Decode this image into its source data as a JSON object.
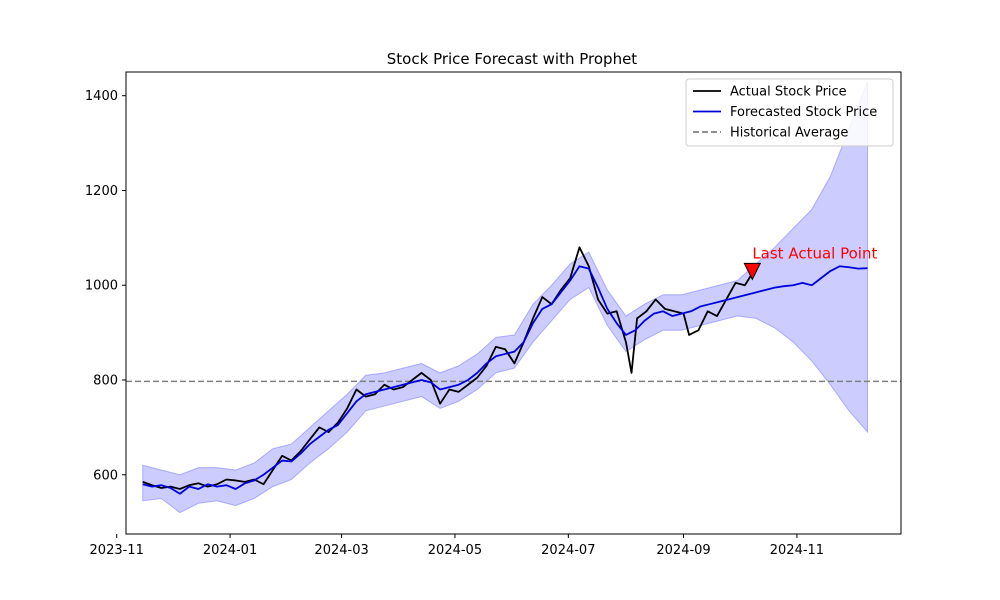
{
  "chart_data": {
    "type": "line",
    "title": "Stock Price Forecast with Prophet",
    "xlabel": "",
    "ylabel": "",
    "xlim": [
      "2023-11-06",
      "2024-12-27"
    ],
    "ylim": [
      475,
      1450
    ],
    "x_ticks": [
      "2023-11",
      "2024-01",
      "2024-03",
      "2024-05",
      "2024-07",
      "2024-09",
      "2024-11"
    ],
    "y_ticks": [
      600,
      800,
      1000,
      1200,
      1400
    ],
    "grid": false,
    "legend_position": "top-right",
    "series": [
      {
        "name": "Actual Stock Price",
        "color": "#000000",
        "style": "solid",
        "points": [
          [
            "2023-11-15",
            585
          ],
          [
            "2023-11-20",
            578
          ],
          [
            "2023-11-25",
            572
          ],
          [
            "2023-11-30",
            575
          ],
          [
            "2023-12-05",
            570
          ],
          [
            "2023-12-10",
            578
          ],
          [
            "2023-12-15",
            582
          ],
          [
            "2023-12-20",
            575
          ],
          [
            "2023-12-25",
            580
          ],
          [
            "2023-12-30",
            590
          ],
          [
            "2024-01-04",
            588
          ],
          [
            "2024-01-09",
            585
          ],
          [
            "2024-01-14",
            590
          ],
          [
            "2024-01-19",
            580
          ],
          [
            "2024-01-24",
            610
          ],
          [
            "2024-01-29",
            640
          ],
          [
            "2024-02-03",
            630
          ],
          [
            "2024-02-08",
            650
          ],
          [
            "2024-02-13",
            675
          ],
          [
            "2024-02-18",
            700
          ],
          [
            "2024-02-23",
            690
          ],
          [
            "2024-02-28",
            710
          ],
          [
            "2024-03-04",
            740
          ],
          [
            "2024-03-09",
            780
          ],
          [
            "2024-03-14",
            765
          ],
          [
            "2024-03-19",
            770
          ],
          [
            "2024-03-24",
            790
          ],
          [
            "2024-03-29",
            780
          ],
          [
            "2024-04-03",
            785
          ],
          [
            "2024-04-08",
            800
          ],
          [
            "2024-04-13",
            815
          ],
          [
            "2024-04-18",
            800
          ],
          [
            "2024-04-23",
            750
          ],
          [
            "2024-04-28",
            780
          ],
          [
            "2024-05-03",
            775
          ],
          [
            "2024-05-08",
            790
          ],
          [
            "2024-05-13",
            805
          ],
          [
            "2024-05-18",
            830
          ],
          [
            "2024-05-23",
            870
          ],
          [
            "2024-05-28",
            865
          ],
          [
            "2024-06-02",
            835
          ],
          [
            "2024-06-07",
            880
          ],
          [
            "2024-06-12",
            930
          ],
          [
            "2024-06-17",
            975
          ],
          [
            "2024-06-22",
            960
          ],
          [
            "2024-06-27",
            990
          ],
          [
            "2024-07-02",
            1015
          ],
          [
            "2024-07-07",
            1080
          ],
          [
            "2024-07-12",
            1040
          ],
          [
            "2024-07-17",
            970
          ],
          [
            "2024-07-22",
            940
          ],
          [
            "2024-07-27",
            945
          ],
          [
            "2024-08-01",
            880
          ],
          [
            "2024-08-04",
            815
          ],
          [
            "2024-08-07",
            930
          ],
          [
            "2024-08-12",
            945
          ],
          [
            "2024-08-17",
            970
          ],
          [
            "2024-08-22",
            950
          ],
          [
            "2024-08-27",
            945
          ],
          [
            "2024-09-01",
            940
          ],
          [
            "2024-09-04",
            895
          ],
          [
            "2024-09-09",
            905
          ],
          [
            "2024-09-14",
            945
          ],
          [
            "2024-09-19",
            935
          ],
          [
            "2024-09-24",
            970
          ],
          [
            "2024-09-29",
            1005
          ],
          [
            "2024-10-04",
            1000
          ],
          [
            "2024-10-08",
            1025
          ]
        ]
      },
      {
        "name": "Forecasted Stock Price",
        "color": "#0000dd",
        "style": "solid",
        "points": [
          [
            "2023-11-15",
            580
          ],
          [
            "2023-11-20",
            575
          ],
          [
            "2023-11-25",
            578
          ],
          [
            "2023-11-30",
            572
          ],
          [
            "2023-12-05",
            560
          ],
          [
            "2023-12-10",
            575
          ],
          [
            "2023-12-15",
            570
          ],
          [
            "2023-12-20",
            580
          ],
          [
            "2023-12-25",
            575
          ],
          [
            "2023-12-30",
            578
          ],
          [
            "2024-01-04",
            570
          ],
          [
            "2024-01-09",
            582
          ],
          [
            "2024-01-14",
            588
          ],
          [
            "2024-01-19",
            600
          ],
          [
            "2024-01-24",
            615
          ],
          [
            "2024-01-29",
            630
          ],
          [
            "2024-02-03",
            628
          ],
          [
            "2024-02-08",
            645
          ],
          [
            "2024-02-13",
            665
          ],
          [
            "2024-02-18",
            680
          ],
          [
            "2024-02-23",
            695
          ],
          [
            "2024-02-28",
            705
          ],
          [
            "2024-03-04",
            730
          ],
          [
            "2024-03-09",
            755
          ],
          [
            "2024-03-14",
            770
          ],
          [
            "2024-03-19",
            775
          ],
          [
            "2024-03-24",
            780
          ],
          [
            "2024-03-29",
            785
          ],
          [
            "2024-04-03",
            790
          ],
          [
            "2024-04-08",
            795
          ],
          [
            "2024-04-13",
            800
          ],
          [
            "2024-04-18",
            795
          ],
          [
            "2024-04-23",
            780
          ],
          [
            "2024-04-28",
            785
          ],
          [
            "2024-05-03",
            790
          ],
          [
            "2024-05-08",
            800
          ],
          [
            "2024-05-13",
            815
          ],
          [
            "2024-05-18",
            835
          ],
          [
            "2024-05-23",
            850
          ],
          [
            "2024-05-28",
            855
          ],
          [
            "2024-06-02",
            860
          ],
          [
            "2024-06-07",
            880
          ],
          [
            "2024-06-12",
            920
          ],
          [
            "2024-06-17",
            950
          ],
          [
            "2024-06-22",
            960
          ],
          [
            "2024-06-27",
            985
          ],
          [
            "2024-07-02",
            1010
          ],
          [
            "2024-07-07",
            1040
          ],
          [
            "2024-07-12",
            1035
          ],
          [
            "2024-07-17",
            995
          ],
          [
            "2024-07-22",
            950
          ],
          [
            "2024-07-27",
            920
          ],
          [
            "2024-08-01",
            895
          ],
          [
            "2024-08-06",
            905
          ],
          [
            "2024-08-11",
            925
          ],
          [
            "2024-08-16",
            940
          ],
          [
            "2024-08-21",
            945
          ],
          [
            "2024-08-26",
            935
          ],
          [
            "2024-08-31",
            940
          ],
          [
            "2024-09-05",
            945
          ],
          [
            "2024-09-10",
            955
          ],
          [
            "2024-09-15",
            960
          ],
          [
            "2024-09-20",
            965
          ],
          [
            "2024-09-25",
            970
          ],
          [
            "2024-09-30",
            975
          ],
          [
            "2024-10-05",
            980
          ],
          [
            "2024-10-10",
            985
          ],
          [
            "2024-10-15",
            990
          ],
          [
            "2024-10-20",
            995
          ],
          [
            "2024-10-25",
            998
          ],
          [
            "2024-10-30",
            1000
          ],
          [
            "2024-11-04",
            1005
          ],
          [
            "2024-11-09",
            1000
          ],
          [
            "2024-11-14",
            1015
          ],
          [
            "2024-11-19",
            1030
          ],
          [
            "2024-11-24",
            1040
          ],
          [
            "2024-11-29",
            1038
          ],
          [
            "2024-12-04",
            1035
          ],
          [
            "2024-12-09",
            1036
          ]
        ]
      },
      {
        "name": "Historical Average",
        "color": "#808080",
        "style": "dashed",
        "value": 797
      }
    ],
    "confidence_band": {
      "color": "#0000ff",
      "opacity": 0.2,
      "points": [
        [
          "2023-11-15",
          545,
          620
        ],
        [
          "2023-11-25",
          550,
          610
        ],
        [
          "2023-12-05",
          520,
          600
        ],
        [
          "2023-12-15",
          540,
          615
        ],
        [
          "2023-12-25",
          545,
          615
        ],
        [
          "2024-01-04",
          535,
          610
        ],
        [
          "2024-01-14",
          550,
          625
        ],
        [
          "2024-01-24",
          575,
          655
        ],
        [
          "2024-02-03",
          590,
          665
        ],
        [
          "2024-02-13",
          625,
          700
        ],
        [
          "2024-02-23",
          655,
          735
        ],
        [
          "2024-03-04",
          690,
          770
        ],
        [
          "2024-03-14",
          735,
          810
        ],
        [
          "2024-03-24",
          745,
          815
        ],
        [
          "2024-04-03",
          755,
          825
        ],
        [
          "2024-04-13",
          765,
          835
        ],
        [
          "2024-04-23",
          740,
          815
        ],
        [
          "2024-05-03",
          755,
          830
        ],
        [
          "2024-05-13",
          780,
          855
        ],
        [
          "2024-05-23",
          815,
          890
        ],
        [
          "2024-06-02",
          825,
          895
        ],
        [
          "2024-06-12",
          880,
          960
        ],
        [
          "2024-06-22",
          925,
          1000
        ],
        [
          "2024-07-02",
          970,
          1045
        ],
        [
          "2024-07-12",
          995,
          1070
        ],
        [
          "2024-07-22",
          915,
          990
        ],
        [
          "2024-08-01",
          860,
          935
        ],
        [
          "2024-08-11",
          885,
          960
        ],
        [
          "2024-08-21",
          905,
          980
        ],
        [
          "2024-08-31",
          905,
          980
        ],
        [
          "2024-09-10",
          915,
          990
        ],
        [
          "2024-09-20",
          925,
          1000
        ],
        [
          "2024-09-30",
          935,
          1010
        ],
        [
          "2024-10-10",
          930,
          1045
        ],
        [
          "2024-10-20",
          910,
          1080
        ],
        [
          "2024-10-30",
          880,
          1120
        ],
        [
          "2024-11-09",
          840,
          1160
        ],
        [
          "2024-11-19",
          790,
          1230
        ],
        [
          "2024-11-29",
          735,
          1330
        ],
        [
          "2024-12-09",
          690,
          1430
        ]
      ]
    },
    "annotations": [
      {
        "text": "Last Actual Point",
        "x": "2024-10-08",
        "y": 1025,
        "color": "#ff0000",
        "marker": "down-triangle"
      }
    ]
  }
}
